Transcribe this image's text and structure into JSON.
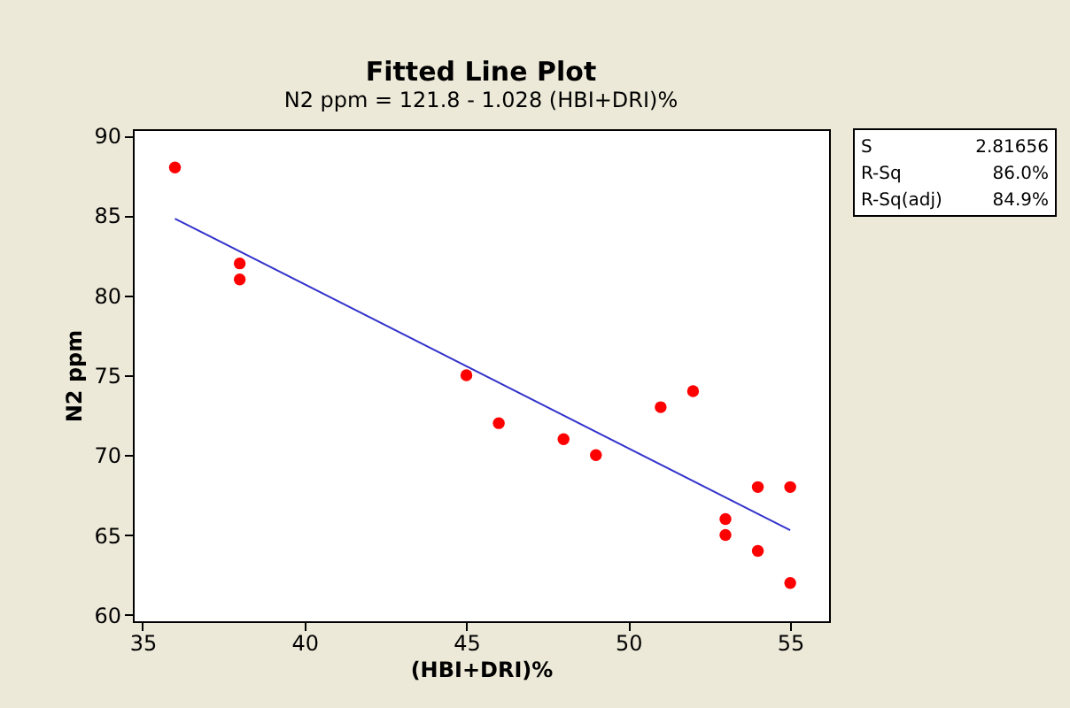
{
  "chart_data": {
    "type": "scatter",
    "title": "Fitted Line Plot",
    "subtitle": "N2 ppm =  121.8 - 1.028 (HBI+DRI)%",
    "xlabel": "(HBI+DRI)%",
    "ylabel": "N2 ppm",
    "xlim": [
      34.7,
      56.2
    ],
    "ylim": [
      59.6,
      90.4
    ],
    "xticks": [
      35,
      40,
      45,
      50,
      55
    ],
    "yticks": [
      60,
      65,
      70,
      75,
      80,
      85,
      90
    ],
    "grid": false,
    "series": [
      {
        "type": "scatter",
        "marker": "circle",
        "color": "#ff0000",
        "x": [
          36,
          38,
          38,
          45,
          46,
          48,
          49,
          51,
          52,
          53,
          53,
          54,
          54,
          55,
          55
        ],
        "values": [
          88,
          82,
          81,
          75,
          72,
          71,
          70,
          73,
          74,
          66,
          65,
          68,
          64,
          68,
          62
        ]
      },
      {
        "type": "line",
        "color": "#3333cc",
        "x": [
          36,
          55
        ],
        "values": [
          84.8,
          65.3
        ]
      }
    ],
    "annotations": [
      "S",
      "2.81656",
      "R-Sq",
      "86.0%",
      "R-Sq(adj)",
      "84.9%"
    ]
  }
}
